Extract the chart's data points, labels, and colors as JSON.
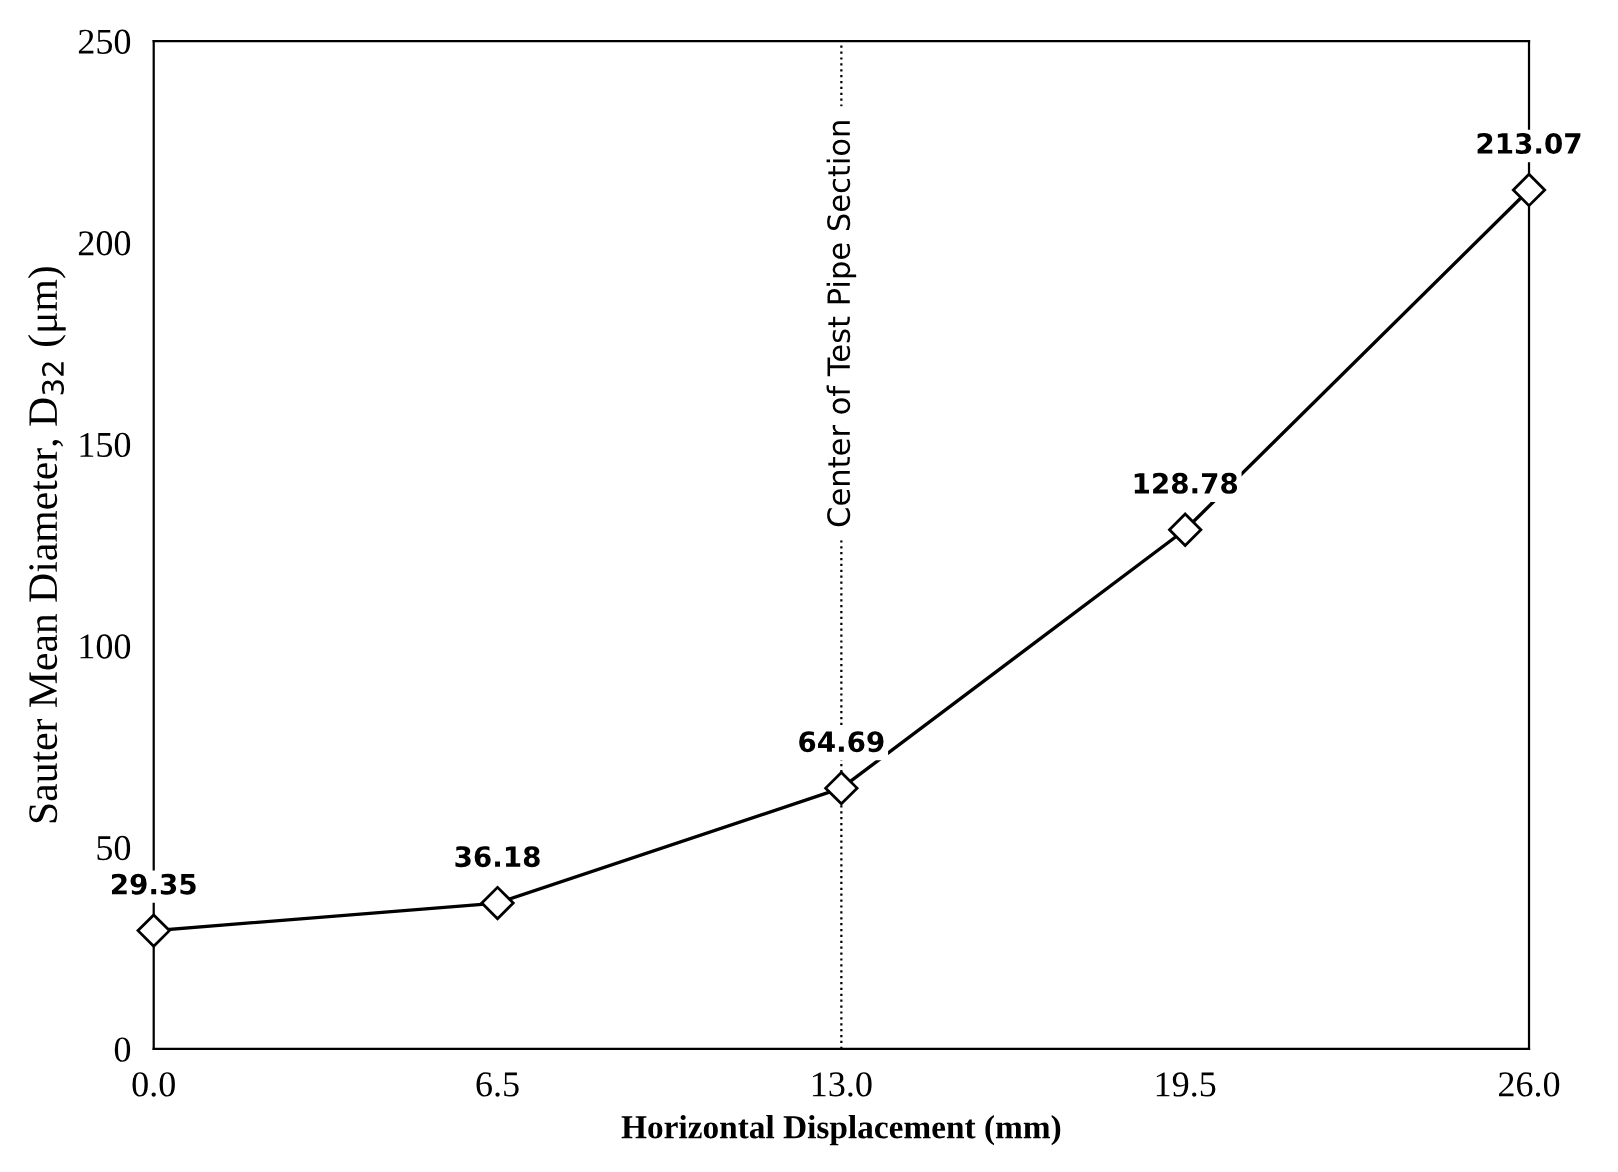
{
  "chart_data": {
    "type": "line",
    "xlabel": "Horizontal Displacement (mm)",
    "ylabel": "Sauter Mean Diameter, D$_{32}$ (μm)",
    "x": [
      0.0,
      6.5,
      13.0,
      19.5,
      26.0
    ],
    "series": [
      {
        "color": "#000000",
        "values": [
          29.35,
          36.18,
          64.69,
          128.78,
          213.07
        ]
      }
    ],
    "data_labels": true,
    "marker": "diamond",
    "line_style": "solid",
    "xlim": [
      0,
      26
    ],
    "xticks": [
      {
        "value": 0,
        "label": "0.0"
      },
      {
        "value": 6.5,
        "label": "6.5"
      },
      {
        "value": 13,
        "label": "13.0"
      },
      {
        "value": 19.5,
        "label": "19.5"
      },
      {
        "value": 26,
        "label": "26.0"
      }
    ],
    "ylim": [
      0,
      250
    ],
    "yticks": [
      0,
      50,
      100,
      150,
      200,
      250
    ],
    "grid": false,
    "ref_lines": [
      {
        "axis": "x",
        "value": 13,
        "label": "Center of Test Pipe Section",
        "color": "#000000",
        "line_style": "dotted"
      }
    ]
  }
}
